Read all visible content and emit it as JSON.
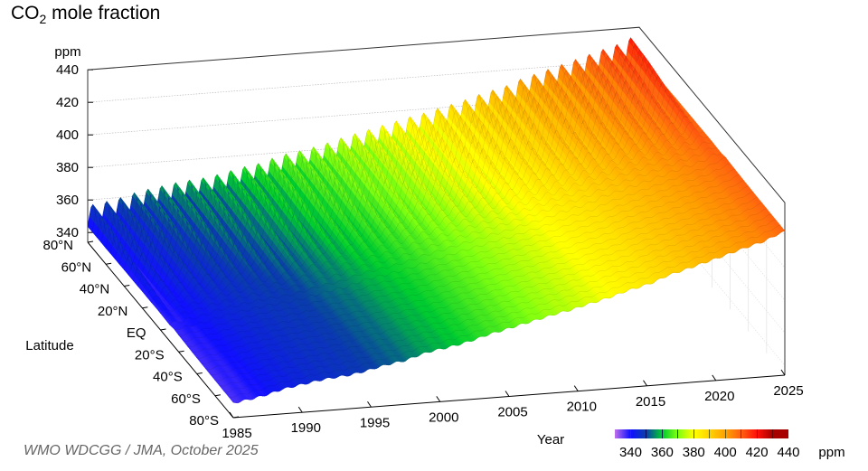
{
  "title": {
    "main": "CO",
    "sub": "2",
    "rest": " mole fraction"
  },
  "credit": "WMO WDCGG / JMA, October 2025",
  "chart_data": {
    "type": "surface",
    "title": "CO2 mole fraction",
    "xlabel": "Year",
    "ylabel": "Latitude",
    "zlabel": "ppm",
    "xlim": [
      1985,
      2025
    ],
    "ylim": [
      -80,
      80
    ],
    "zlim": [
      334,
      440
    ],
    "x_ticks": [
      "1985",
      "1990",
      "1995",
      "2000",
      "2005",
      "2010",
      "2015",
      "2020",
      "2025"
    ],
    "x_tick_values": [
      1985,
      1990,
      1995,
      2000,
      2005,
      2010,
      2015,
      2020,
      2025
    ],
    "y_ticks": [
      "80°N",
      "60°N",
      "40°N",
      "20°N",
      "EQ",
      "20°S",
      "40°S",
      "60°S",
      "80°S"
    ],
    "y_tick_values": [
      80,
      60,
      40,
      20,
      0,
      -20,
      -40,
      -60,
      -80
    ],
    "z_ticks": [
      "340",
      "360",
      "380",
      "400",
      "420",
      "440"
    ],
    "z_tick_values": [
      340,
      360,
      380,
      400,
      420,
      440
    ],
    "annual_mean_years": [
      1985,
      1986,
      1987,
      1988,
      1989,
      1990,
      1991,
      1992,
      1993,
      1994,
      1995,
      1996,
      1997,
      1998,
      1999,
      2000,
      2001,
      2002,
      2003,
      2004,
      2005,
      2006,
      2007,
      2008,
      2009,
      2010,
      2011,
      2012,
      2013,
      2014,
      2015,
      2016,
      2017,
      2018,
      2019,
      2020,
      2021,
      2022,
      2023,
      2024,
      2025
    ],
    "annual_mean_ppm": [
      345.7,
      347.0,
      348.7,
      351.1,
      352.6,
      353.9,
      355.3,
      356.1,
      356.8,
      358.3,
      360.2,
      361.9,
      363.1,
      365.8,
      367.8,
      369.0,
      370.6,
      372.6,
      375.1,
      376.9,
      378.9,
      380.9,
      382.7,
      384.8,
      386.3,
      388.6,
      390.5,
      392.6,
      395.3,
      397.2,
      399.4,
      402.9,
      405.0,
      407.4,
      409.8,
      412.1,
      414.7,
      417.1,
      419.3,
      423.0,
      425.5
    ],
    "latitudes": [
      80,
      60,
      40,
      20,
      0,
      -20,
      -40,
      -60,
      -80
    ],
    "latitude_offset_ppm": [
      3.5,
      3.0,
      2.0,
      1.0,
      0.0,
      -1.0,
      -1.5,
      -1.8,
      -2.0
    ],
    "seasonal_half_amplitude_ppm": [
      8.0,
      7.0,
      5.0,
      3.0,
      1.2,
      0.6,
      0.5,
      0.6,
      0.6
    ],
    "colorbar": {
      "label": "ppm",
      "ticks": [
        "340",
        "360",
        "380",
        "400",
        "420",
        "440"
      ],
      "tick_values": [
        340,
        360,
        380,
        400,
        420,
        440
      ],
      "range": [
        330,
        440
      ],
      "colors": [
        "#c070ea",
        "#1010ff",
        "#0a3fa8",
        "#00cc30",
        "#80ff10",
        "#ffff00",
        "#ffd200",
        "#ffa000",
        "#ff6010",
        "#ff1008",
        "#a80000"
      ]
    },
    "grid": true,
    "legend": "colorbar bottom-right"
  }
}
